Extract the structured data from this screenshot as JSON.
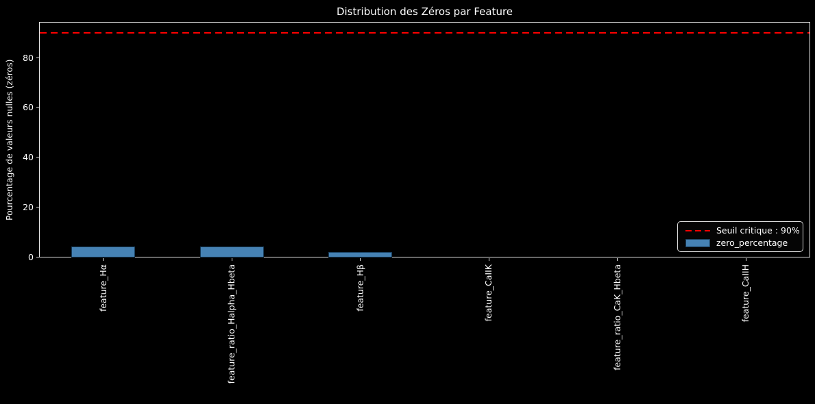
{
  "figure": {
    "title": "Distribution des Zéros par Feature",
    "ylabel": "Pourcentage de valeurs nulles (zéros)"
  },
  "legend": {
    "threshold_label": "Seuil critique : 90%",
    "series_label": "zero_percentage"
  },
  "chart_data": {
    "type": "bar",
    "title": "Distribution des Zéros par Feature",
    "xlabel": "",
    "ylabel": "Pourcentage de valeurs nulles (zéros)",
    "categories": [
      "feature_Hα",
      "feature_ratio_Halpha_Hbeta",
      "feature_Hβ",
      "feature_CaIIK",
      "feature_ratio_CaK_Hbeta",
      "feature_CaIIH"
    ],
    "series": [
      {
        "name": "zero_percentage",
        "values": [
          4.5,
          4.4,
          2.3,
          0,
          0,
          0
        ]
      }
    ],
    "threshold": {
      "value": 90,
      "label": "Seuil critique : 90%",
      "color": "#ff0000",
      "style": "dashed"
    },
    "yticks": [
      0,
      20,
      40,
      60,
      80
    ],
    "ylim": [
      0,
      94.4
    ],
    "xticklabel_rotation": 90,
    "bar_color": "#4682b4",
    "threshold_color": "#ff0000",
    "background_color": "#000000",
    "text_color": "#ffffff",
    "legend_position": "lower right",
    "grid": false
  }
}
